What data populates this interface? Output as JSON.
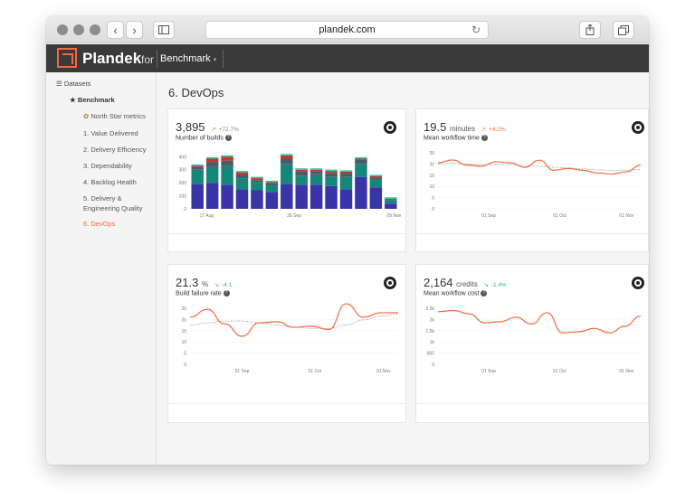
{
  "browser": {
    "url": "plandek.com"
  },
  "app": {
    "brand": "Plandek",
    "for_label": "for",
    "benchmark": "Benchmark"
  },
  "sidebar": {
    "datasets": "Datasets",
    "benchmark": "Benchmark",
    "items": [
      "North Star metrics",
      "1. Value Delivered",
      "2. Delivery Efficiency",
      "3. Dependability",
      "4. Backlog Health",
      "5. Delivery &",
      "Engineering Quality",
      "6. DevOps"
    ]
  },
  "page": {
    "title": "6. DevOps"
  },
  "colors": {
    "accent": "#f26a3d",
    "positive": "#3fb06a"
  },
  "cards": [
    {
      "value": "3,895",
      "unit": "",
      "delta": "+72.7%",
      "label": "Number of builds",
      "chart_data": {
        "type": "bar",
        "x_ticks": [
          "17 Aug",
          "28 Sep",
          "09 Nov"
        ],
        "y_ticks": [
          "0",
          "100",
          "200",
          "300",
          "400"
        ],
        "ylim": [
          0,
          430
        ],
        "stacks": [
          [
            190,
            110,
            20,
            10
          ],
          [
            200,
            120,
            40,
            25
          ],
          [
            185,
            145,
            40,
            30
          ],
          [
            150,
            85,
            25,
            20
          ],
          [
            145,
            60,
            15,
            15
          ],
          [
            130,
            50,
            15,
            10
          ],
          [
            190,
            155,
            40,
            25
          ],
          [
            185,
            70,
            30,
            15
          ],
          [
            185,
            80,
            25,
            10
          ],
          [
            175,
            70,
            30,
            15
          ],
          [
            150,
            95,
            25,
            15
          ],
          [
            245,
            100,
            30,
            10
          ],
          [
            165,
            60,
            15,
            10
          ],
          [
            40,
            25,
            8,
            5
          ]
        ]
      }
    },
    {
      "value": "19.5",
      "unit": "minutes",
      "delta": "+4.2%",
      "label": "Mean workflow time",
      "chart_data": {
        "type": "line",
        "x_ticks": [
          "01 Sep",
          "01 Oct",
          "01 Nov"
        ],
        "y_ticks": [
          "0",
          "5",
          "10",
          "15",
          "20",
          "25"
        ],
        "ylim": [
          0,
          25
        ],
        "values": [
          20.5,
          21.8,
          19.5,
          19,
          21,
          20.5,
          18.5,
          21.7,
          17.2,
          18,
          17.2,
          16,
          15.5,
          16.5,
          19.5
        ],
        "trend": [
          19.8,
          20.3,
          20,
          19.7,
          19.8,
          19.7,
          19.3,
          19,
          18.6,
          18.2,
          17.8,
          17.4,
          17.2,
          17.3,
          17.5
        ]
      }
    },
    {
      "value": "21.3",
      "unit": "%",
      "delta": "-4.1",
      "label": "Build failure rate",
      "chart_data": {
        "type": "line",
        "x_ticks": [
          "01 Sep",
          "01 Oct",
          "01 Nov"
        ],
        "y_ticks": [
          "0",
          "5",
          "10",
          "15",
          "20",
          "25"
        ],
        "ylim": [
          0,
          25
        ],
        "values": [
          21,
          24.5,
          18,
          12.5,
          18.5,
          19,
          16.5,
          17,
          15.5,
          27,
          21,
          23,
          23
        ],
        "trend": [
          17.5,
          18.5,
          19.3,
          19.3,
          18.5,
          17.5,
          16.5,
          16,
          16,
          17.5,
          19.8,
          21.5,
          22.5
        ]
      }
    },
    {
      "value": "2,164",
      "unit": "credits",
      "delta": "-1.4%",
      "label": "Mean workflow cost",
      "chart_data": {
        "type": "line",
        "x_ticks": [
          "01 Sep",
          "01 Oct",
          "01 Nov"
        ],
        "y_ticks": [
          "0",
          "500",
          "1k",
          "1.5k",
          "2k",
          "2.5k"
        ],
        "ylim": [
          0,
          2500
        ],
        "values": [
          2350,
          2400,
          2250,
          1850,
          1900,
          2100,
          1800,
          2300,
          1400,
          1450,
          1600,
          1400,
          1700,
          2150
        ],
        "trend": []
      }
    }
  ]
}
